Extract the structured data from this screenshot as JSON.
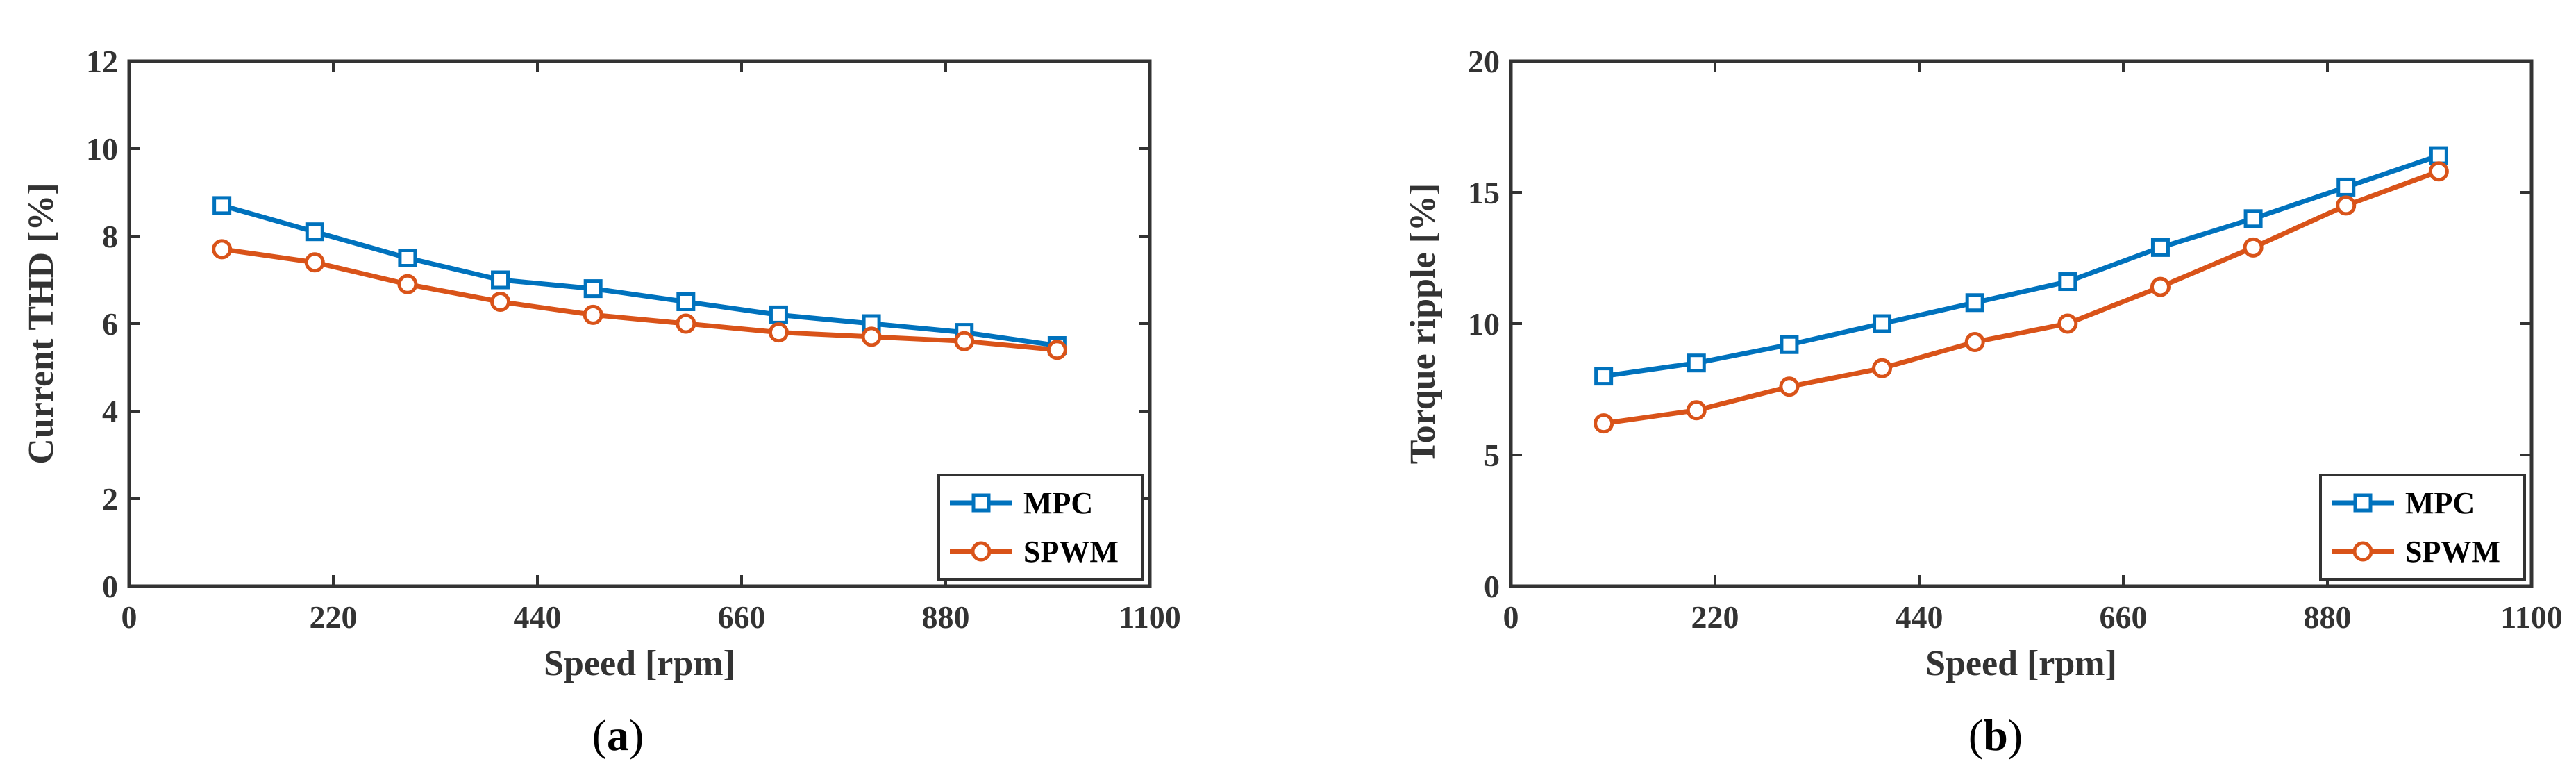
{
  "chart_data": [
    {
      "type": "line",
      "panel": "a",
      "caption_label": "a",
      "xlabel": "Speed [rpm]",
      "ylabel": "Current THD [%]",
      "xlim": [
        0,
        1100
      ],
      "ylim": [
        0,
        12
      ],
      "xticks": [
        0,
        220,
        440,
        660,
        880,
        1100
      ],
      "yticks": [
        0,
        2,
        4,
        6,
        8,
        10,
        12
      ],
      "grid": false,
      "legend_position": "bottom-right",
      "x": [
        100,
        200,
        300,
        400,
        500,
        600,
        700,
        800,
        900,
        1000
      ],
      "series": [
        {
          "name": "MPC",
          "color": "#0072BD",
          "marker": "square",
          "values": [
            8.7,
            8.1,
            7.5,
            7.0,
            6.8,
            6.5,
            6.2,
            6.0,
            5.8,
            5.5
          ]
        },
        {
          "name": "SPWM",
          "color": "#D95319",
          "marker": "circle",
          "values": [
            7.7,
            7.4,
            6.9,
            6.5,
            6.2,
            6.0,
            5.8,
            5.7,
            5.6,
            5.4
          ]
        }
      ]
    },
    {
      "type": "line",
      "panel": "b",
      "caption_label": "b",
      "xlabel": "Speed [rpm]",
      "ylabel": "Torque ripple [%]",
      "xlim": [
        0,
        1100
      ],
      "ylim": [
        0,
        20
      ],
      "xticks": [
        0,
        220,
        440,
        660,
        880,
        1100
      ],
      "yticks": [
        0,
        5,
        10,
        15,
        20
      ],
      "grid": false,
      "legend_position": "bottom-right",
      "x": [
        100,
        200,
        300,
        400,
        500,
        600,
        700,
        800,
        900,
        1000
      ],
      "series": [
        {
          "name": "MPC",
          "color": "#0072BD",
          "marker": "square",
          "values": [
            8.0,
            8.5,
            9.2,
            10.0,
            10.8,
            11.6,
            12.9,
            14.0,
            15.2,
            16.4
          ]
        },
        {
          "name": "SPWM",
          "color": "#D95319",
          "marker": "circle",
          "values": [
            6.2,
            6.7,
            7.6,
            8.3,
            9.3,
            10.0,
            11.4,
            12.9,
            14.5,
            15.8
          ]
        }
      ]
    }
  ]
}
